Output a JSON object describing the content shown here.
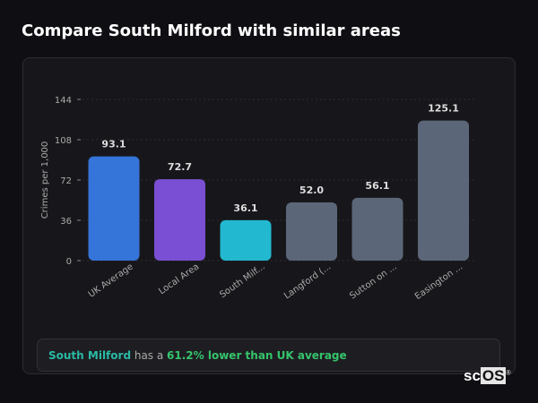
{
  "title": "Compare South Milford with similar areas",
  "chart_data": {
    "type": "bar",
    "categories": [
      "UK Average",
      "Local Area",
      "South Milf...",
      "Langford (...",
      "Sutton on ...",
      "Easington ..."
    ],
    "values": [
      93.1,
      72.7,
      36.1,
      52.0,
      56.1,
      125.1
    ],
    "value_labels": [
      "93.1",
      "72.7",
      "36.1",
      "52.0",
      "56.1",
      "125.1"
    ],
    "colors": [
      "#3574d9",
      "#7a4fd3",
      "#22b8cf",
      "#5b6679",
      "#5b6679",
      "#5b6679"
    ],
    "ylabel": "Crimes per 1,000",
    "ylim": [
      0,
      144
    ],
    "yticks": [
      0,
      36,
      72,
      108,
      144
    ],
    "grid": true
  },
  "summary": {
    "place": "South Milford",
    "mid": " has a ",
    "highlight": "61.2% lower than UK average"
  },
  "logo": {
    "text1": "sc",
    "text2": "OS",
    "mark": "®"
  }
}
